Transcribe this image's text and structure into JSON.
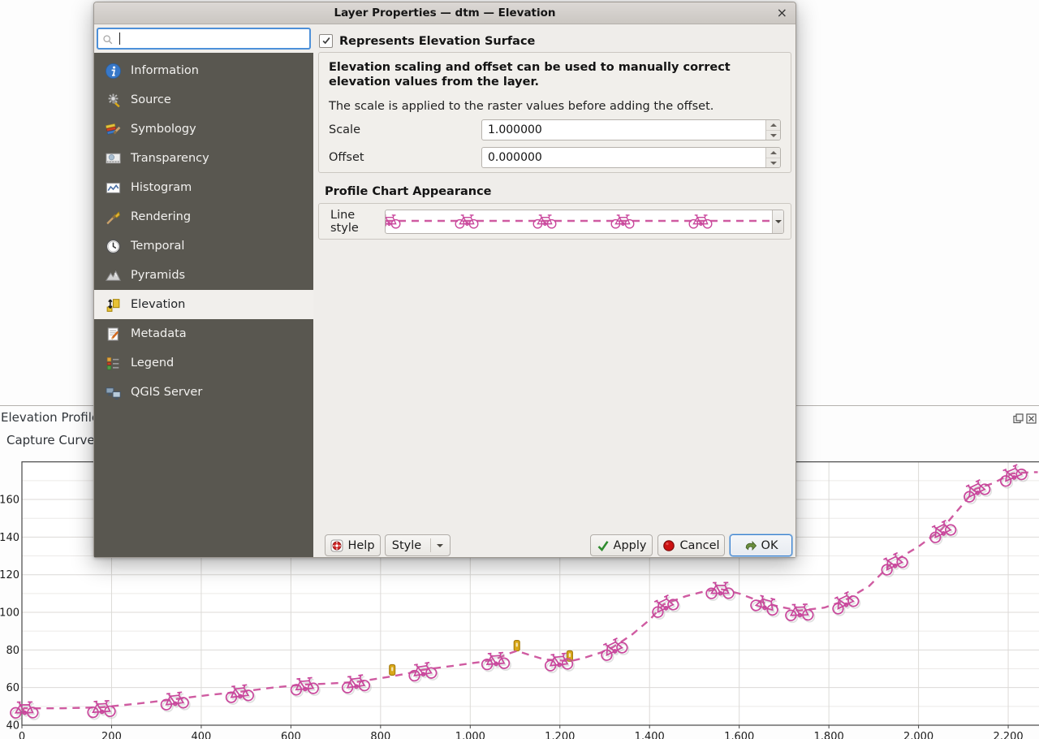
{
  "dialog": {
    "title": "Layer Properties — dtm — Elevation",
    "close_glyph": "×",
    "search": {
      "placeholder": "",
      "value": ""
    },
    "sidebar": {
      "selected": "Elevation",
      "items": [
        {
          "label": "Information",
          "icon": "information-icon"
        },
        {
          "label": "Source",
          "icon": "source-icon"
        },
        {
          "label": "Symbology",
          "icon": "symbology-icon"
        },
        {
          "label": "Transparency",
          "icon": "transparency-icon"
        },
        {
          "label": "Histogram",
          "icon": "histogram-icon"
        },
        {
          "label": "Rendering",
          "icon": "rendering-icon"
        },
        {
          "label": "Temporal",
          "icon": "temporal-icon"
        },
        {
          "label": "Pyramids",
          "icon": "pyramids-icon"
        },
        {
          "label": "Elevation",
          "icon": "elevation-icon"
        },
        {
          "label": "Metadata",
          "icon": "metadata-icon"
        },
        {
          "label": "Legend",
          "icon": "legend-icon"
        },
        {
          "label": "QGIS Server",
          "icon": "qgis-server-icon"
        }
      ]
    },
    "content": {
      "surface_checkbox_label": "Represents Elevation Surface",
      "surface_checkbox_checked": true,
      "scaling_note_bold": "Elevation scaling and offset can be used to manually correct elevation values from the layer.",
      "scaling_note": "The scale is applied to the raster values before adding the offset.",
      "scale_label": "Scale",
      "scale_value": "1.000000",
      "offset_label": "Offset",
      "offset_value": "0.000000",
      "appearance_heading": "Profile Chart Appearance",
      "line_style_label": "Line style"
    },
    "buttons": {
      "help": "Help",
      "style": "Style",
      "apply": "Apply",
      "cancel": "Cancel",
      "ok": "OK"
    },
    "accent_focus_color": "#4d90d9"
  },
  "panel": {
    "title": "Elevation Profile",
    "toolbar_item": "Capture Curve",
    "icons": [
      "float-icon",
      "panel-close-icon"
    ]
  },
  "chart_data": {
    "type": "line",
    "title": "Elevation Profile",
    "xlabel": "",
    "ylabel": "",
    "xlim": [
      0,
      2268
    ],
    "ylim": [
      40,
      180
    ],
    "grid": "x-major, y-major+minor",
    "legend": "none",
    "x_ticks": [
      0,
      200,
      400,
      600,
      800,
      1000,
      1200,
      1400,
      1600,
      1800,
      2000,
      2200
    ],
    "x_tick_labels": [
      "0",
      "200",
      "400",
      "600",
      "800",
      "1,000",
      "1,200",
      "1,400",
      "1,600",
      "1,800",
      "2,000",
      "2,200"
    ],
    "y_ticks": [
      40,
      60,
      80,
      100,
      120,
      140,
      160
    ],
    "y_tick_labels": [
      "40",
      "60",
      "80",
      "100",
      "120",
      "140",
      "160"
    ],
    "line_color": "#cf5ba1",
    "line_style": "dashed",
    "marker": "bicycle",
    "marker_color": "#c9479c",
    "point_feature_color": "#d9a818",
    "series": [
      {
        "name": "dtm",
        "x": [
          0,
          5,
          90,
          177,
          260,
          340,
          415,
          485,
          560,
          630,
          690,
          744,
          800,
          826,
          860,
          893,
          960,
          1020,
          1056,
          1085,
          1104,
          1130,
          1165,
          1197,
          1222,
          1250,
          1290,
          1318,
          1360,
          1400,
          1432,
          1480,
          1520,
          1557,
          1600,
          1658,
          1700,
          1734,
          1790,
          1834,
          1890,
          1943,
          2000,
          2051,
          2090,
          2127,
          2165,
          2209,
          2250,
          2266
        ],
        "y": [
          47.5,
          49,
          49,
          49.5,
          51.5,
          53.8,
          56,
          57.7,
          60,
          61.6,
          62.2,
          62.9,
          65,
          66,
          67.5,
          69.4,
          71.5,
          73.5,
          75,
          78,
          79.5,
          77.5,
          75,
          74.5,
          74,
          75.5,
          78.5,
          81.4,
          88,
          96,
          104.3,
          108.5,
          111,
          112.5,
          110,
          104.8,
          102.5,
          100.9,
          102.5,
          106.1,
          114,
          126.8,
          135,
          144,
          155,
          165.6,
          168.5,
          173.8,
          174.5,
          174.5
        ]
      }
    ],
    "bicycle_markers": {
      "x": [
        5,
        177,
        340,
        485,
        630,
        744,
        893,
        1056,
        1197,
        1318,
        1432,
        1557,
        1658,
        1734,
        1834,
        1943,
        2051,
        2127,
        2209
      ],
      "y": [
        49,
        49.5,
        53.8,
        57.7,
        61.6,
        62.9,
        69.4,
        75,
        74.5,
        81.4,
        104.3,
        112.5,
        104.8,
        100.9,
        106.1,
        126.8,
        144,
        165.6,
        173.8
      ]
    },
    "point_markers": {
      "x": [
        826,
        1104,
        1222
      ],
      "y": [
        66.8,
        79.7,
        74.2
      ]
    }
  }
}
